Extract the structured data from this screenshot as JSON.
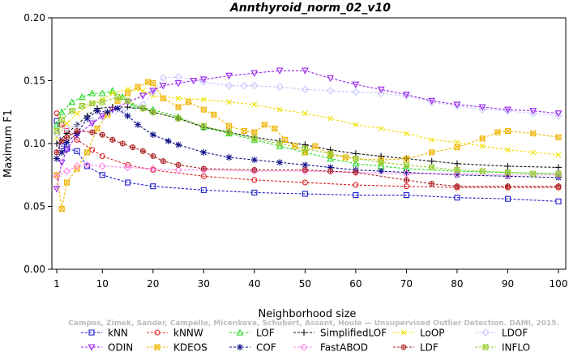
{
  "chart_data": {
    "type": "line",
    "title": "Annthyroid_norm_02_v10",
    "xlabel": "Neighborhood size",
    "ylabel": "Maximum F1",
    "xlim": [
      1,
      100
    ],
    "ylim": [
      0,
      0.2
    ],
    "xticks": [
      1,
      10,
      20,
      30,
      40,
      50,
      60,
      70,
      80,
      90,
      100
    ],
    "xtick_labels": [
      "1",
      "10",
      "20",
      "30",
      "40",
      "50",
      "60",
      "70",
      "80",
      "90",
      "100"
    ],
    "yticks": [
      0,
      0.05,
      0.1,
      0.15,
      0.2
    ],
    "ytick_labels": [
      "0.00",
      "0.05",
      "0.10",
      "0.15",
      "0.20"
    ],
    "grid": false,
    "legend_position": "bottom",
    "watermark": "Campos, Zimek, Sander, Campello, Micenkova, Schubert, Assent, Houle — Unsupervised Outlier Detection. DAMI, 2015.",
    "series": [
      {
        "name": "kNN",
        "color": "#1f1fcc",
        "marker": "square",
        "points": [
          [
            1,
            0.118
          ],
          [
            2,
            0.098
          ],
          [
            3,
            0.096
          ],
          [
            5,
            0.094
          ],
          [
            7,
            0.082
          ],
          [
            10,
            0.075
          ],
          [
            15,
            0.069
          ],
          [
            20,
            0.066
          ],
          [
            30,
            0.063
          ],
          [
            40,
            0.061
          ],
          [
            50,
            0.06
          ],
          [
            60,
            0.059
          ],
          [
            70,
            0.059
          ],
          [
            80,
            0.057
          ],
          [
            90,
            0.056
          ],
          [
            100,
            0.054
          ]
        ]
      },
      {
        "name": "kNNW",
        "color": "#dd2222",
        "marker": "circle",
        "points": [
          [
            1,
            0.124
          ],
          [
            2,
            0.115
          ],
          [
            3,
            0.11
          ],
          [
            5,
            0.103
          ],
          [
            8,
            0.095
          ],
          [
            10,
            0.09
          ],
          [
            15,
            0.083
          ],
          [
            20,
            0.079
          ],
          [
            30,
            0.074
          ],
          [
            40,
            0.071
          ],
          [
            50,
            0.069
          ],
          [
            60,
            0.067
          ],
          [
            70,
            0.066
          ],
          [
            80,
            0.065
          ],
          [
            90,
            0.065
          ],
          [
            100,
            0.065
          ]
        ]
      },
      {
        "name": "LOF",
        "color": "#22dd22",
        "marker": "triangle-up",
        "points": [
          [
            1,
            0.115
          ],
          [
            2,
            0.125
          ],
          [
            4,
            0.133
          ],
          [
            6,
            0.137
          ],
          [
            8,
            0.14
          ],
          [
            10,
            0.14
          ],
          [
            12,
            0.142
          ],
          [
            14,
            0.137
          ],
          [
            16,
            0.13
          ],
          [
            20,
            0.127
          ],
          [
            25,
            0.121
          ],
          [
            30,
            0.113
          ],
          [
            35,
            0.108
          ],
          [
            40,
            0.103
          ],
          [
            45,
            0.098
          ],
          [
            50,
            0.093
          ],
          [
            55,
            0.088
          ],
          [
            60,
            0.084
          ],
          [
            65,
            0.082
          ],
          [
            70,
            0.08
          ],
          [
            80,
            0.078
          ],
          [
            90,
            0.077
          ],
          [
            100,
            0.076
          ]
        ]
      },
      {
        "name": "SimplifiedLOF",
        "color": "#111111",
        "marker": "plus",
        "points": [
          [
            1,
            0.1
          ],
          [
            3,
            0.108
          ],
          [
            5,
            0.115
          ],
          [
            7,
            0.122
          ],
          [
            9,
            0.128
          ],
          [
            12,
            0.129
          ],
          [
            15,
            0.129
          ],
          [
            18,
            0.128
          ],
          [
            20,
            0.125
          ],
          [
            25,
            0.12
          ],
          [
            30,
            0.113
          ],
          [
            35,
            0.109
          ],
          [
            40,
            0.105
          ],
          [
            45,
            0.102
          ],
          [
            50,
            0.099
          ],
          [
            55,
            0.095
          ],
          [
            60,
            0.092
          ],
          [
            65,
            0.09
          ],
          [
            70,
            0.088
          ],
          [
            75,
            0.086
          ],
          [
            80,
            0.084
          ],
          [
            90,
            0.082
          ],
          [
            100,
            0.081
          ]
        ]
      },
      {
        "name": "LoOP",
        "color": "#f0e000",
        "marker": "cross",
        "points": [
          [
            1,
            0.105
          ],
          [
            3,
            0.116
          ],
          [
            5,
            0.124
          ],
          [
            8,
            0.132
          ],
          [
            10,
            0.135
          ],
          [
            12,
            0.14
          ],
          [
            15,
            0.143
          ],
          [
            18,
            0.142
          ],
          [
            20,
            0.138
          ],
          [
            25,
            0.136
          ],
          [
            30,
            0.135
          ],
          [
            35,
            0.133
          ],
          [
            40,
            0.131
          ],
          [
            45,
            0.127
          ],
          [
            50,
            0.124
          ],
          [
            55,
            0.12
          ],
          [
            60,
            0.115
          ],
          [
            65,
            0.112
          ],
          [
            70,
            0.108
          ],
          [
            75,
            0.103
          ],
          [
            80,
            0.101
          ],
          [
            85,
            0.098
          ],
          [
            90,
            0.095
          ],
          [
            95,
            0.093
          ],
          [
            100,
            0.091
          ]
        ]
      },
      {
        "name": "LDOF",
        "color": "#c8c8ff",
        "marker": "diamond",
        "points": [
          [
            1,
            0.108
          ],
          [
            3,
            0.112
          ],
          [
            5,
            0.115
          ],
          [
            8,
            0.118
          ],
          [
            10,
            0.121
          ],
          [
            14,
            0.126
          ],
          [
            18,
            0.131
          ],
          [
            20,
            0.141
          ],
          [
            22,
            0.152
          ],
          [
            25,
            0.153
          ],
          [
            30,
            0.149
          ],
          [
            35,
            0.146
          ],
          [
            38,
            0.146
          ],
          [
            40,
            0.146
          ],
          [
            45,
            0.145
          ],
          [
            50,
            0.143
          ],
          [
            55,
            0.142
          ],
          [
            60,
            0.141
          ],
          [
            65,
            0.14
          ],
          [
            70,
            0.138
          ],
          [
            75,
            0.133
          ],
          [
            80,
            0.13
          ],
          [
            85,
            0.127
          ],
          [
            90,
            0.126
          ],
          [
            95,
            0.124
          ],
          [
            100,
            0.122
          ]
        ]
      },
      {
        "name": "ODIN",
        "color": "#9922ee",
        "marker": "triangle-down",
        "points": [
          [
            1,
            0.064
          ],
          [
            2,
            0.085
          ],
          [
            3,
            0.095
          ],
          [
            5,
            0.107
          ],
          [
            8,
            0.116
          ],
          [
            10,
            0.122
          ],
          [
            12,
            0.127
          ],
          [
            15,
            0.133
          ],
          [
            18,
            0.138
          ],
          [
            20,
            0.142
          ],
          [
            22,
            0.146
          ],
          [
            25,
            0.148
          ],
          [
            28,
            0.15
          ],
          [
            30,
            0.151
          ],
          [
            35,
            0.154
          ],
          [
            40,
            0.156
          ],
          [
            45,
            0.158
          ],
          [
            50,
            0.158
          ],
          [
            55,
            0.152
          ],
          [
            60,
            0.147
          ],
          [
            65,
            0.143
          ],
          [
            70,
            0.139
          ],
          [
            75,
            0.134
          ],
          [
            80,
            0.131
          ],
          [
            85,
            0.129
          ],
          [
            90,
            0.127
          ],
          [
            95,
            0.126
          ],
          [
            100,
            0.124
          ]
        ]
      },
      {
        "name": "KDEOS",
        "color": "#f0b400",
        "marker": "square-x",
        "points": [
          [
            1,
            0.075
          ],
          [
            2,
            0.048
          ],
          [
            3,
            0.069
          ],
          [
            5,
            0.08
          ],
          [
            7,
            0.093
          ],
          [
            9,
            0.112
          ],
          [
            11,
            0.123
          ],
          [
            13,
            0.134
          ],
          [
            15,
            0.14
          ],
          [
            17,
            0.145
          ],
          [
            19,
            0.149
          ],
          [
            20,
            0.148
          ],
          [
            22,
            0.136
          ],
          [
            25,
            0.129
          ],
          [
            27,
            0.133
          ],
          [
            30,
            0.127
          ],
          [
            32,
            0.123
          ],
          [
            35,
            0.114
          ],
          [
            38,
            0.11
          ],
          [
            40,
            0.109
          ],
          [
            42,
            0.115
          ],
          [
            44,
            0.112
          ],
          [
            46,
            0.103
          ],
          [
            48,
            0.098
          ],
          [
            50,
            0.093
          ],
          [
            52,
            0.098
          ],
          [
            55,
            0.091
          ],
          [
            58,
            0.089
          ],
          [
            60,
            0.088
          ],
          [
            65,
            0.087
          ],
          [
            70,
            0.088
          ],
          [
            75,
            0.093
          ],
          [
            80,
            0.097
          ],
          [
            85,
            0.104
          ],
          [
            88,
            0.109
          ],
          [
            90,
            0.11
          ],
          [
            95,
            0.108
          ],
          [
            100,
            0.105
          ]
        ]
      },
      {
        "name": "COF",
        "color": "#111188",
        "marker": "asterisk",
        "points": [
          [
            1,
            0.088
          ],
          [
            2,
            0.093
          ],
          [
            3,
            0.101
          ],
          [
            5,
            0.108
          ],
          [
            7,
            0.12
          ],
          [
            9,
            0.126
          ],
          [
            11,
            0.125
          ],
          [
            13,
            0.128
          ],
          [
            15,
            0.122
          ],
          [
            17,
            0.115
          ],
          [
            20,
            0.107
          ],
          [
            23,
            0.102
          ],
          [
            25,
            0.099
          ],
          [
            30,
            0.093
          ],
          [
            35,
            0.089
          ],
          [
            40,
            0.087
          ],
          [
            45,
            0.085
          ],
          [
            50,
            0.083
          ],
          [
            55,
            0.081
          ],
          [
            60,
            0.079
          ],
          [
            65,
            0.078
          ],
          [
            70,
            0.077
          ],
          [
            80,
            0.075
          ],
          [
            90,
            0.074
          ],
          [
            100,
            0.073
          ]
        ]
      },
      {
        "name": "FastABOD",
        "color": "#ff88ee",
        "marker": "diamond",
        "points": [
          [
            1,
            0.074
          ],
          [
            3,
            0.078
          ],
          [
            5,
            0.082
          ],
          [
            7,
            0.083
          ],
          [
            10,
            0.082
          ],
          [
            15,
            0.081
          ],
          [
            20,
            0.08
          ],
          [
            25,
            0.079
          ],
          [
            30,
            0.079
          ],
          [
            40,
            0.078
          ],
          [
            50,
            0.078
          ],
          [
            60,
            0.077
          ],
          [
            70,
            0.076
          ],
          [
            80,
            0.076
          ],
          [
            90,
            0.075
          ],
          [
            100,
            0.075
          ]
        ]
      },
      {
        "name": "LDF",
        "color": "#aa2222",
        "marker": "circle-plus",
        "points": [
          [
            1,
            0.093
          ],
          [
            2,
            0.102
          ],
          [
            3,
            0.105
          ],
          [
            5,
            0.11
          ],
          [
            8,
            0.109
          ],
          [
            10,
            0.107
          ],
          [
            12,
            0.103
          ],
          [
            14,
            0.1
          ],
          [
            16,
            0.097
          ],
          [
            18,
            0.094
          ],
          [
            20,
            0.09
          ],
          [
            22,
            0.086
          ],
          [
            25,
            0.083
          ],
          [
            30,
            0.08
          ],
          [
            40,
            0.079
          ],
          [
            50,
            0.079
          ],
          [
            55,
            0.078
          ],
          [
            60,
            0.077
          ],
          [
            70,
            0.071
          ],
          [
            75,
            0.068
          ],
          [
            80,
            0.066
          ],
          [
            90,
            0.066
          ],
          [
            100,
            0.066
          ]
        ]
      },
      {
        "name": "INFLO",
        "color": "#99cc33",
        "marker": "square-x",
        "points": [
          [
            1,
            0.11
          ],
          [
            2,
            0.119
          ],
          [
            4,
            0.126
          ],
          [
            6,
            0.13
          ],
          [
            8,
            0.132
          ],
          [
            10,
            0.133
          ],
          [
            13,
            0.137
          ],
          [
            15,
            0.134
          ],
          [
            18,
            0.128
          ],
          [
            20,
            0.125
          ],
          [
            25,
            0.12
          ],
          [
            30,
            0.114
          ],
          [
            35,
            0.109
          ],
          [
            40,
            0.104
          ],
          [
            45,
            0.1
          ],
          [
            50,
            0.096
          ],
          [
            55,
            0.092
          ],
          [
            60,
            0.088
          ],
          [
            65,
            0.085
          ],
          [
            70,
            0.083
          ],
          [
            75,
            0.081
          ],
          [
            80,
            0.079
          ],
          [
            85,
            0.078
          ],
          [
            90,
            0.077
          ],
          [
            95,
            0.076
          ],
          [
            100,
            0.076
          ]
        ]
      }
    ]
  }
}
